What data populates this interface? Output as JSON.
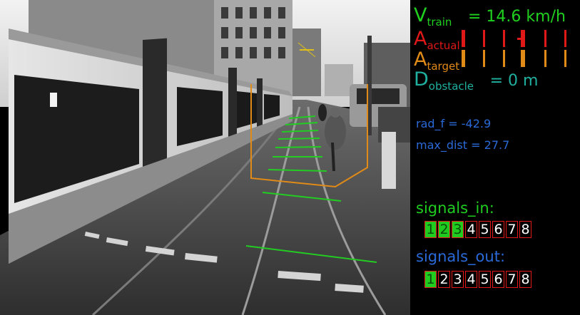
{
  "hud": {
    "v_train": {
      "symbol": "V",
      "subscript": "train",
      "value": "= 14.6 km/h",
      "color": "#1fd01f"
    },
    "a_actual": {
      "symbol": "A",
      "subscript": "actual",
      "color": "#e01818",
      "marker_level": 0.58
    },
    "a_target": {
      "symbol": "A",
      "subscript": "target",
      "color": "#e08a18",
      "marker_level": 0.58
    },
    "d_obstacle": {
      "symbol": "D",
      "subscript": "obstacle",
      "value": "= 0 m",
      "color": "#1fb0a0"
    },
    "rad_f": "rad_f = -42.9",
    "max_dist": "max_dist = 27.7",
    "info_color": "#2a6ad8",
    "signals_in": {
      "label": "signals_in:",
      "color": "#1fcc1f",
      "cells": [
        "1",
        "2",
        "3",
        "4",
        "5",
        "6",
        "7",
        "8"
      ],
      "active": [
        true,
        true,
        true,
        false,
        false,
        false,
        false,
        false
      ]
    },
    "signals_out": {
      "label": "signals_out:",
      "color": "#2a6ad8",
      "cells": [
        "1",
        "2",
        "3",
        "4",
        "5",
        "6",
        "7",
        "8"
      ],
      "active": [
        true,
        false,
        false,
        false,
        false,
        false,
        false,
        false
      ]
    }
  },
  "icons": {
    "camera_view": "tram-camera-image",
    "trajectory": "trajectory-rungs-icon",
    "roi": "detection-roi-box"
  }
}
